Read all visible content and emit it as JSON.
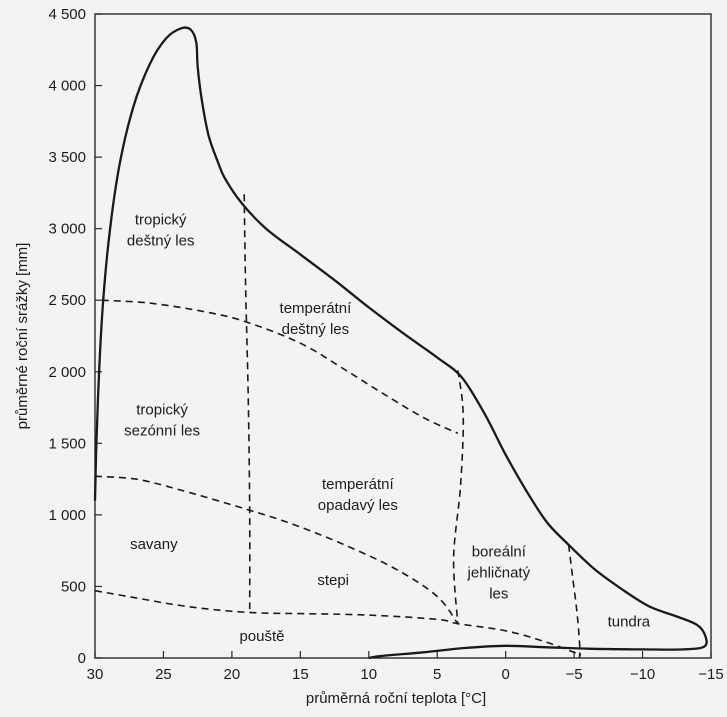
{
  "chart_data": {
    "type": "diagram",
    "xlabel": "průměrná roční teplota [°C]",
    "ylabel": "průměrné roční srážky [mm]",
    "xlim": [
      30,
      -15
    ],
    "ylim": [
      0,
      4500
    ],
    "x_ticks": [
      "30",
      "25",
      "20",
      "15",
      "10",
      "5",
      "0",
      "−5",
      "−10",
      "−15"
    ],
    "x_tick_values": [
      30,
      25,
      20,
      15,
      10,
      5,
      0,
      -5,
      -10,
      -15
    ],
    "y_ticks": [
      "0",
      "500",
      "1 000",
      "1 500",
      "2 000",
      "2 500",
      "3 000",
      "3 500",
      "4 000",
      "4 500"
    ],
    "y_tick_values": [
      0,
      500,
      1000,
      1500,
      2000,
      2500,
      3000,
      3500,
      4000,
      4500
    ],
    "grid": false,
    "envelope": [
      [
        30,
        1100
      ],
      [
        29.9,
        1500
      ],
      [
        29.7,
        2000
      ],
      [
        29.4,
        2500
      ],
      [
        28.9,
        3000
      ],
      [
        28.2,
        3450
      ],
      [
        27.2,
        3850
      ],
      [
        26,
        4150
      ],
      [
        24.8,
        4330
      ],
      [
        23.7,
        4400
      ],
      [
        23,
        4390
      ],
      [
        22.6,
        4300
      ],
      [
        22.5,
        4130
      ],
      [
        22.2,
        3900
      ],
      [
        21.7,
        3650
      ],
      [
        21,
        3460
      ],
      [
        20.5,
        3350
      ],
      [
        19.3,
        3180
      ],
      [
        17.5,
        3000
      ],
      [
        15,
        2820
      ],
      [
        12.5,
        2640
      ],
      [
        10,
        2450
      ],
      [
        7.5,
        2270
      ],
      [
        5,
        2100
      ],
      [
        3.2,
        1960
      ],
      [
        1.5,
        1700
      ],
      [
        0,
        1420
      ],
      [
        -1.5,
        1170
      ],
      [
        -3,
        950
      ],
      [
        -4.5,
        800
      ],
      [
        -6.5,
        620
      ],
      [
        -8.5,
        480
      ],
      [
        -10.5,
        360
      ],
      [
        -12.5,
        290
      ],
      [
        -14,
        230
      ],
      [
        -14.6,
        150
      ],
      [
        -14.5,
        80
      ],
      [
        -13,
        60
      ],
      [
        -10,
        60
      ],
      [
        -6,
        65
      ],
      [
        -3,
        75
      ],
      [
        0,
        85
      ],
      [
        3,
        70
      ],
      [
        6,
        40
      ],
      [
        9,
        15
      ],
      [
        10,
        0
      ]
    ],
    "boundaries": [
      {
        "name": "dest-sezon",
        "points": [
          [
            29.5,
            2500
          ],
          [
            26,
            2480
          ],
          [
            22,
            2420
          ],
          [
            19,
            2350
          ],
          [
            15,
            2200
          ],
          [
            12,
            2030
          ],
          [
            9,
            1850
          ],
          [
            6,
            1680
          ],
          [
            3.5,
            1570
          ]
        ]
      },
      {
        "name": "sezon-savana",
        "points": [
          [
            30,
            1270
          ],
          [
            27,
            1250
          ],
          [
            24,
            1180
          ],
          [
            20,
            1070
          ],
          [
            16,
            950
          ],
          [
            12,
            800
          ],
          [
            8,
            620
          ],
          [
            5,
            430
          ],
          [
            3.5,
            240
          ]
        ]
      },
      {
        "name": "savana-poust",
        "points": [
          [
            30,
            470
          ],
          [
            27,
            420
          ],
          [
            24,
            370
          ],
          [
            21,
            335
          ],
          [
            18,
            315
          ],
          [
            15,
            310
          ],
          [
            10,
            300
          ],
          [
            5,
            270
          ],
          [
            3.5,
            240
          ],
          [
            0,
            190
          ],
          [
            -3,
            110
          ],
          [
            -5.5,
            20
          ]
        ]
      },
      {
        "name": "v-tropic-temperate",
        "points": [
          [
            19.1,
            3240
          ],
          [
            19,
            2600
          ],
          [
            18.8,
            1800
          ],
          [
            18.7,
            1000
          ],
          [
            18.7,
            320
          ]
        ]
      },
      {
        "name": "v-temperate-boreal",
        "points": [
          [
            3.5,
            2010
          ],
          [
            3.1,
            1700
          ],
          [
            3.3,
            1200
          ],
          [
            3.8,
            700
          ],
          [
            3.5,
            240
          ]
        ]
      },
      {
        "name": "v-boreal-tundra",
        "points": [
          [
            -4.6,
            790
          ],
          [
            -4.9,
            560
          ],
          [
            -5.2,
            330
          ],
          [
            -5.4,
            100
          ],
          [
            -5.4,
            0
          ]
        ]
      }
    ],
    "regions": [
      {
        "key": "tropicky_destny_les",
        "lines": [
          "tropický",
          "deštný les"
        ],
        "x": 25.2,
        "y": 3030
      },
      {
        "key": "temperatni_destny_les",
        "lines": [
          "temperátní",
          "deštný les"
        ],
        "x": 13.9,
        "y": 2410
      },
      {
        "key": "tropicky_sezonni_les",
        "lines": [
          "tropický",
          "sezónní les"
        ],
        "x": 25.1,
        "y": 1700
      },
      {
        "key": "temperatni_opadavy_les",
        "lines": [
          "temperátní",
          "opadavý les"
        ],
        "x": 10.8,
        "y": 1180
      },
      {
        "key": "savany",
        "lines": [
          "savany"
        ],
        "x": 25.7,
        "y": 760
      },
      {
        "key": "stepi",
        "lines": [
          "stepi"
        ],
        "x": 12.6,
        "y": 510
      },
      {
        "key": "boreal_jehlicnaty_les",
        "lines": [
          "boreální",
          "jehličnatý",
          "les"
        ],
        "x": 0.5,
        "y": 710
      },
      {
        "key": "tundra",
        "lines": [
          "tundra"
        ],
        "x": -9,
        "y": 220
      },
      {
        "key": "pouste",
        "lines": [
          "pouště"
        ],
        "x": 17.8,
        "y": 120
      }
    ],
    "colors": {
      "line": "#1a1a1a",
      "background": "#f4f3f1"
    }
  }
}
